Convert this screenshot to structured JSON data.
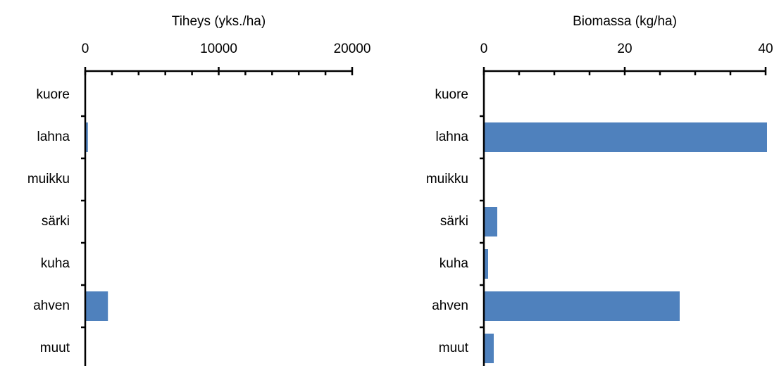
{
  "chart_data": [
    {
      "type": "bar",
      "orientation": "horizontal",
      "xlabel": "Tiheys (yks./ha)",
      "categories": [
        "kuore",
        "lahna",
        "muikku",
        "särki",
        "kuha",
        "ahven",
        "muut"
      ],
      "values": [
        0,
        200,
        0,
        0,
        0,
        1700,
        0
      ],
      "color": "#4f81bd",
      "xlim": [
        0,
        20000
      ],
      "xticks": [
        0,
        10000,
        20000
      ],
      "xminorticks": [
        2000,
        4000,
        6000,
        8000,
        12000,
        14000,
        16000,
        18000
      ]
    },
    {
      "type": "bar",
      "orientation": "horizontal",
      "xlabel": "Biomassa (kg/ha)",
      "categories": [
        "kuore",
        "lahna",
        "muikku",
        "särki",
        "kuha",
        "ahven",
        "muut"
      ],
      "values": [
        0,
        40.2,
        0,
        1.9,
        0.6,
        27.8,
        1.4
      ],
      "color": "#4f81bd",
      "xlim": [
        0,
        40
      ],
      "xticks": [
        0,
        20,
        40
      ],
      "xminorticks": [
        5,
        10,
        15,
        25,
        30,
        35
      ]
    }
  ]
}
